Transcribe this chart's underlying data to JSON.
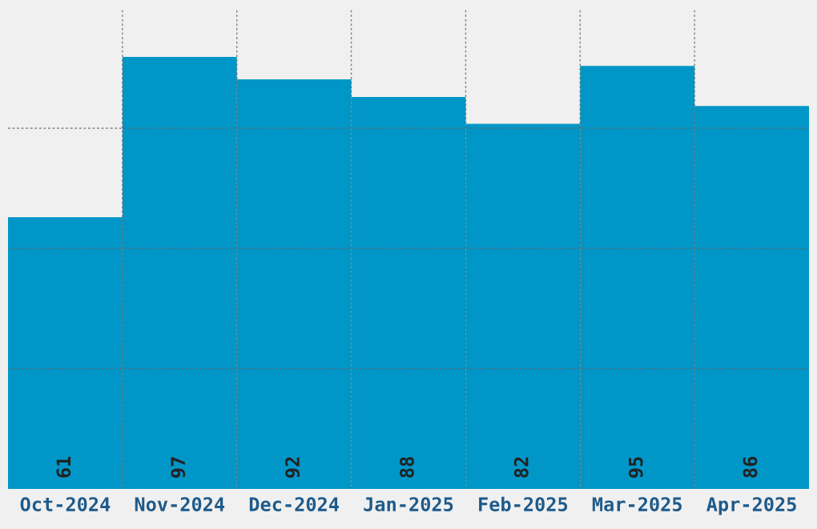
{
  "chart_data": {
    "type": "bar",
    "categories": [
      "Oct-2024",
      "Nov-2024",
      "Dec-2024",
      "Jan-2025",
      "Feb-2025",
      "Mar-2025",
      "Apr-2025"
    ],
    "values": [
      61,
      97,
      92,
      88,
      82,
      95,
      86
    ],
    "color": "#0096c8",
    "ylim": [
      0,
      108
    ],
    "yticks": [
      {
        "value": 27,
        "label": null
      },
      {
        "value": 54,
        "label": null
      },
      {
        "value": 81,
        "label": null
      }
    ],
    "tick_labels": "x",
    "grid": true,
    "data_labels": true
  }
}
